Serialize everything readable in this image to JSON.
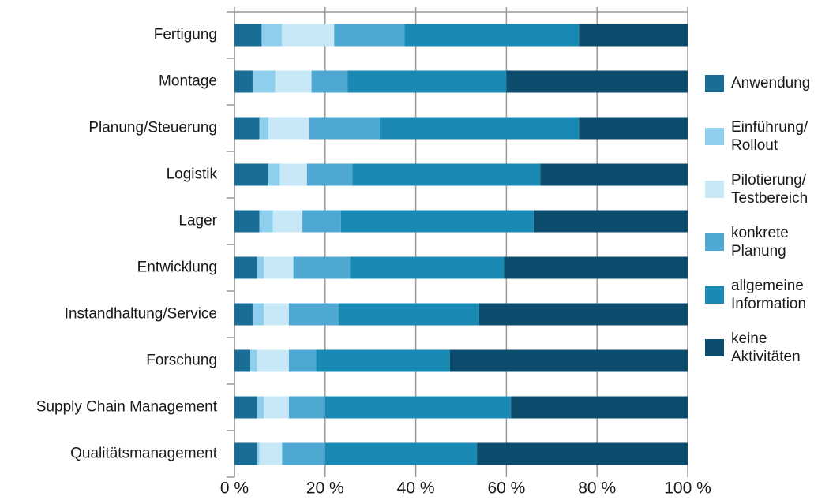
{
  "chart_data": {
    "type": "stacked-bar-horizontal",
    "categories": [
      "Fertigung",
      "Montage",
      "Planung/Steuerung",
      "Logistik",
      "Lager",
      "Entwicklung",
      "Instandhaltung/Service",
      "Forschung",
      "Supply Chain Management",
      "Qualitätsmanagement"
    ],
    "series": [
      {
        "name": "Anwendung",
        "color": "#1a6e96",
        "values": [
          6,
          4,
          5.5,
          7.5,
          5.5,
          5,
          4,
          3.5,
          5,
          5
        ]
      },
      {
        "name": "Einführung/ Rollout",
        "color": "#8ecfee",
        "values": [
          4.5,
          5,
          2,
          2.5,
          3,
          1.5,
          2.5,
          1.5,
          1.5,
          0.5
        ]
      },
      {
        "name": "Pilotierung/ Testbereich",
        "color": "#c8e8f8",
        "values": [
          11.5,
          8,
          9,
          6,
          6.5,
          6.5,
          5.5,
          7,
          5.5,
          5
        ]
      },
      {
        "name": "konkrete Planung",
        "color": "#4ea8d2",
        "values": [
          15.5,
          8,
          15.5,
          10,
          8.5,
          12.5,
          11,
          6,
          8,
          9.5
        ]
      },
      {
        "name": "allgemeine Information",
        "color": "#1a8ab5",
        "values": [
          38.5,
          35,
          44,
          41.5,
          42.5,
          34,
          31,
          29.5,
          41,
          33.5
        ]
      },
      {
        "name": "keine Aktivitäten",
        "color": "#0c4d6e",
        "values": [
          24,
          40,
          24,
          32.5,
          34,
          40.5,
          46,
          52.5,
          39,
          46.5
        ]
      }
    ],
    "xlim": [
      0,
      100
    ],
    "xticks": [
      {
        "value": 0,
        "label": "0 %"
      },
      {
        "value": 20,
        "label": "20 %"
      },
      {
        "value": 40,
        "label": "40 %"
      },
      {
        "value": 60,
        "label": "60 %"
      },
      {
        "value": 80,
        "label": "80 %"
      },
      {
        "value": 100,
        "label": "100 %"
      }
    ],
    "grid": true,
    "legend": "right"
  }
}
